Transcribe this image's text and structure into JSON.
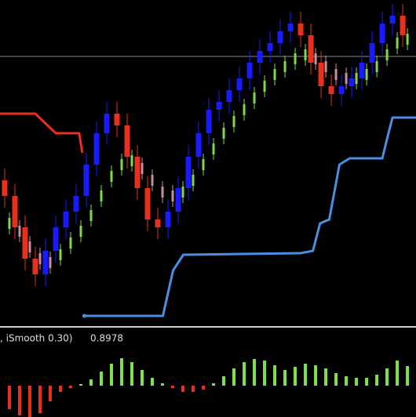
{
  "chart_data": [
    {
      "type": "candlestick",
      "xlim": [
        -0.46,
        40.3
      ],
      "ylim": [
        0,
        415
      ],
      "candles": {
        "ohlc": [
          [
            185,
            200,
            150,
            165
          ],
          [
            165,
            180,
            110,
            125
          ],
          [
            125,
            140,
            70,
            85
          ],
          [
            85,
            100,
            50,
            65
          ],
          [
            65,
            110,
            50,
            95
          ],
          [
            95,
            140,
            80,
            125
          ],
          [
            125,
            160,
            110,
            145
          ],
          [
            145,
            180,
            130,
            165
          ],
          [
            165,
            220,
            150,
            205
          ],
          [
            205,
            260,
            190,
            245
          ],
          [
            245,
            285,
            230,
            270
          ],
          [
            270,
            285,
            240,
            255
          ],
          [
            255,
            270,
            200,
            215
          ],
          [
            215,
            230,
            160,
            175
          ],
          [
            175,
            190,
            120,
            135
          ],
          [
            135,
            150,
            110,
            125
          ],
          [
            125,
            160,
            110,
            145
          ],
          [
            145,
            190,
            130,
            175
          ],
          [
            175,
            230,
            160,
            215
          ],
          [
            215,
            260,
            200,
            245
          ],
          [
            245,
            290,
            230,
            275
          ],
          [
            275,
            300,
            260,
            285
          ],
          [
            285,
            315,
            270,
            300
          ],
          [
            300,
            330,
            285,
            315
          ],
          [
            315,
            350,
            300,
            335
          ],
          [
            335,
            365,
            320,
            350
          ],
          [
            350,
            375,
            335,
            360
          ],
          [
            360,
            390,
            345,
            375
          ],
          [
            375,
            400,
            360,
            385
          ],
          [
            385,
            400,
            355,
            370
          ],
          [
            370,
            385,
            320,
            335
          ],
          [
            335,
            350,
            290,
            305
          ],
          [
            305,
            320,
            280,
            295
          ],
          [
            295,
            320,
            280,
            305
          ],
          [
            305,
            330,
            290,
            315
          ],
          [
            315,
            350,
            300,
            335
          ],
          [
            335,
            375,
            320,
            360
          ],
          [
            360,
            400,
            345,
            385
          ],
          [
            385,
            410,
            370,
            395
          ],
          [
            395,
            410,
            355,
            370
          ]
        ],
        "up_color": "#1a1aff",
        "down_color": "#e8301c"
      },
      "smooth": {
        "values": [
          130,
          120,
          100,
          85,
          80,
          90,
          105,
          120,
          140,
          165,
          190,
          205,
          210,
          200,
          185,
          170,
          165,
          170,
          185,
          205,
          225,
          245,
          260,
          275,
          290,
          305,
          320,
          330,
          340,
          345,
          340,
          330,
          320,
          315,
          315,
          320,
          330,
          345,
          360,
          365
        ],
        "up_color": "#7fd94a",
        "down_color": "#c98fa0"
      },
      "lines": [
        {
          "x": [
            -0.46,
            3,
            5,
            7.3,
            7.6
          ],
          "y": [
            270,
            270,
            245,
            245,
            220
          ],
          "color": "#e8301c"
        },
        {
          "x": [
            7.8,
            15.5,
            16.5,
            17.5,
            29,
            30.2,
            30.9,
            31.8,
            32.8,
            33.8,
            37,
            37.6,
            38,
            40.3
          ],
          "y": [
            12,
            12,
            70,
            90,
            92,
            95,
            130,
            135,
            205,
            213,
            213,
            245,
            265,
            265
          ],
          "color": "#4a90e2"
        }
      ],
      "level": 343,
      "level_color": "#8a8a8a"
    },
    {
      "type": "bar",
      "label": ", iSmooth 0.30)",
      "last_value": 0.8978,
      "ylim": [
        -40,
        40
      ],
      "values": [
        -30,
        -38,
        -40,
        -35,
        -20,
        -8,
        -3,
        2,
        8,
        18,
        28,
        35,
        30,
        20,
        10,
        3,
        -3,
        -8,
        -8,
        -5,
        3,
        12,
        22,
        30,
        34,
        32,
        26,
        20,
        24,
        28,
        26,
        22,
        16,
        12,
        10,
        10,
        14,
        22,
        32,
        25
      ],
      "up_color": "#7fe050",
      "down_color": "#e8301c"
    }
  ]
}
